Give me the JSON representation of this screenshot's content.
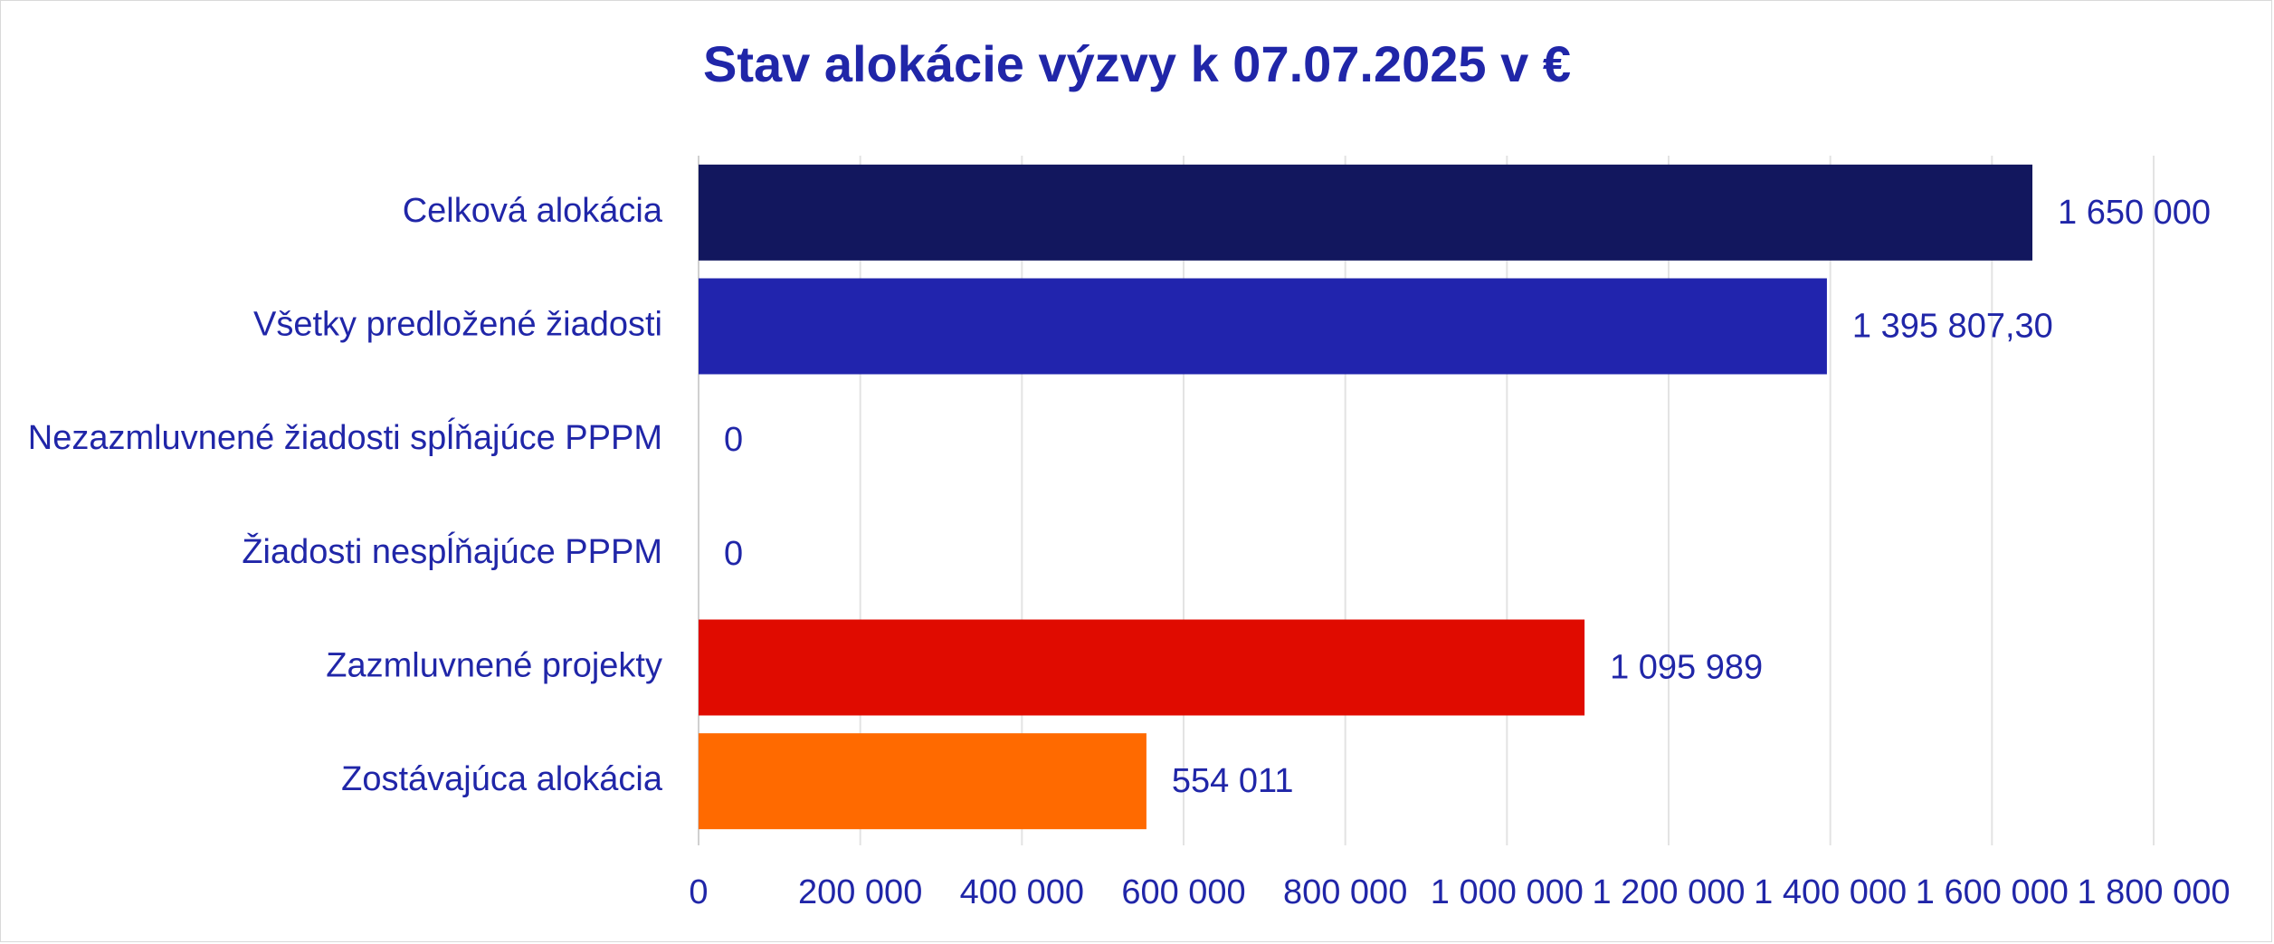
{
  "chart_data": {
    "type": "bar",
    "orientation": "horizontal",
    "title": "Stav alokácie výzvy k 07.07.2025 v €",
    "categories": [
      "Celková alokácia",
      "Všetky predložené žiadosti",
      "Nezazmluvnené žiadosti spĺňajúce PPPM",
      "Žiadosti nespĺňajúce PPPM",
      "Zazmluvnené projekty",
      "Zostávajúca alokácia"
    ],
    "values": [
      1650000,
      1395807.3,
      0,
      0,
      1095989,
      554011
    ],
    "value_labels": [
      "1 650 000",
      "1 395 807,30",
      "0",
      "0",
      "1 095 989",
      "554 011"
    ],
    "colors": [
      "#12175e",
      "#2124ad",
      "#2124ad",
      "#2124ad",
      "#e00b00",
      "#ff6a00"
    ],
    "xlim": [
      0,
      1800000
    ],
    "xticks": [
      0,
      200000,
      400000,
      600000,
      800000,
      1000000,
      1200000,
      1400000,
      1600000,
      1800000
    ],
    "xtick_labels": [
      "0",
      "200 000",
      "400 000",
      "600 000",
      "800 000",
      "1 000 000",
      "1 200 000",
      "1 400 000",
      "1 600 000",
      "1 800 000"
    ],
    "grid": true,
    "legend": "none",
    "text_color": "#2026a8"
  }
}
